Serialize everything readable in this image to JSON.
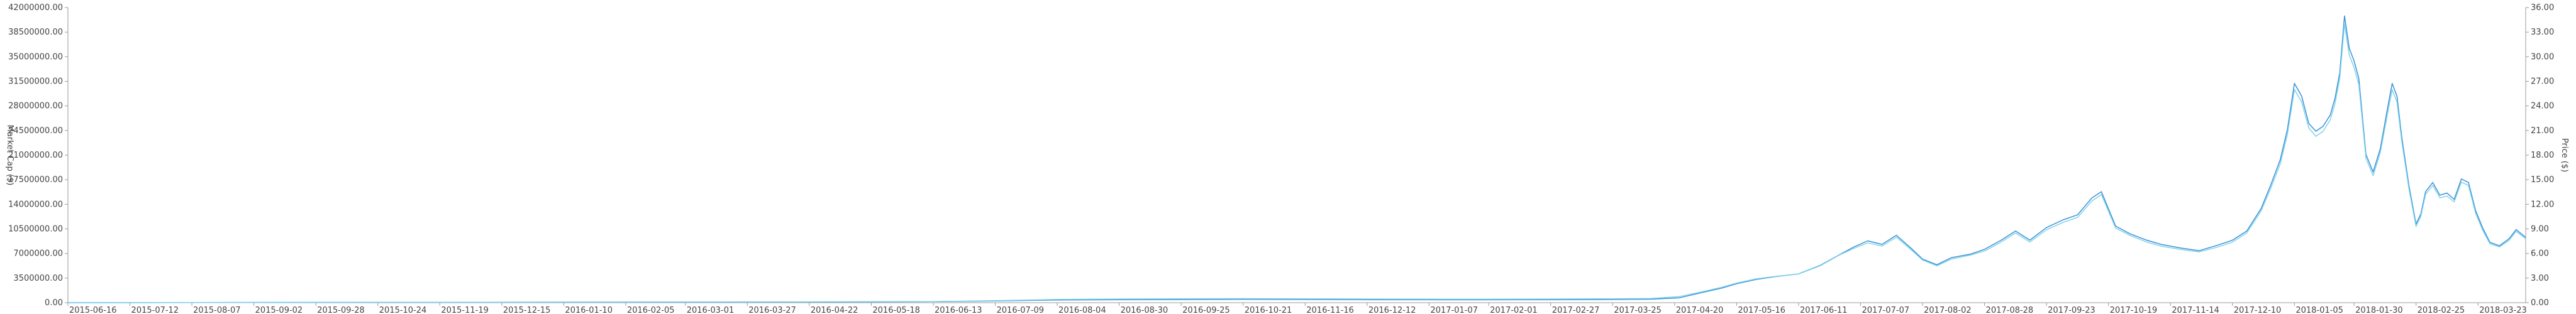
{
  "chart_data": {
    "type": "line",
    "title": "",
    "xlabel": "",
    "ylabel_left": "Market Cap ($)",
    "ylabel_right": "Price ($)",
    "left_ylim": [
      0,
      42000000
    ],
    "right_ylim": [
      0,
      36
    ],
    "left_ticks": [
      "0.00",
      "3500000.00",
      "7000000.00",
      "10500000.00",
      "14000000.00",
      "17500000.00",
      "21000000.00",
      "24500000.00",
      "28000000.00",
      "31500000.00",
      "35000000.00",
      "38500000.00",
      "42000000.00"
    ],
    "right_ticks": [
      "0.00",
      "3.00",
      "6.00",
      "9.00",
      "12.00",
      "15.00",
      "18.00",
      "21.00",
      "24.00",
      "27.00",
      "30.00",
      "33.00",
      "36.00"
    ],
    "x_ticks": [
      "2015-06-16",
      "2015-07-12",
      "2015-08-07",
      "2015-09-02",
      "2015-09-28",
      "2015-10-24",
      "2015-11-19",
      "2015-12-15",
      "2016-01-10",
      "2016-02-05",
      "2016-03-01",
      "2016-03-27",
      "2016-04-22",
      "2016-05-18",
      "2016-06-13",
      "2016-07-09",
      "2016-08-04",
      "2016-08-30",
      "2016-09-25",
      "2016-10-21",
      "2016-11-16",
      "2016-12-12",
      "2017-01-07",
      "2017-02-01",
      "2017-02-27",
      "2017-03-25",
      "2017-04-20",
      "2017-05-16",
      "2017-06-11",
      "2017-07-07",
      "2017-08-02",
      "2017-08-28",
      "2017-09-23",
      "2017-10-19",
      "2017-11-14",
      "2017-12-10",
      "2018-01-05",
      "2018-01-30",
      "2018-02-25",
      "2018-03-23"
    ],
    "x_start": "2015-06-16",
    "x_end": "2018-04-12",
    "grid": false,
    "legend": "none",
    "series": [
      {
        "axis": "left",
        "color": "#3a8fd8",
        "points": [
          [
            "2015-06-16",
            0
          ],
          [
            "2015-10-24",
            50000
          ],
          [
            "2016-03-27",
            100000
          ],
          [
            "2016-06-13",
            150000
          ],
          [
            "2016-07-09",
            250000
          ],
          [
            "2016-08-04",
            380000
          ],
          [
            "2016-08-30",
            420000
          ],
          [
            "2016-09-25",
            450000
          ],
          [
            "2016-10-21",
            480000
          ],
          [
            "2016-11-16",
            460000
          ],
          [
            "2016-12-12",
            430000
          ],
          [
            "2017-01-07",
            420000
          ],
          [
            "2017-02-01",
            410000
          ],
          [
            "2017-02-27",
            430000
          ],
          [
            "2017-03-25",
            460000
          ],
          [
            "2017-04-10",
            500000
          ],
          [
            "2017-04-22",
            700000
          ],
          [
            "2017-05-01",
            1400000
          ],
          [
            "2017-05-10",
            2100000
          ],
          [
            "2017-05-16",
            2700000
          ],
          [
            "2017-05-24",
            3300000
          ],
          [
            "2017-06-01",
            3700000
          ],
          [
            "2017-06-11",
            4100000
          ],
          [
            "2017-06-20",
            5300000
          ],
          [
            "2017-06-28",
            6800000
          ],
          [
            "2017-07-04",
            7900000
          ],
          [
            "2017-07-10",
            8800000
          ],
          [
            "2017-07-16",
            8300000
          ],
          [
            "2017-07-22",
            9600000
          ],
          [
            "2017-07-28",
            7800000
          ],
          [
            "2017-08-02",
            6200000
          ],
          [
            "2017-08-08",
            5400000
          ],
          [
            "2017-08-14",
            6400000
          ],
          [
            "2017-08-22",
            6900000
          ],
          [
            "2017-08-28",
            7600000
          ],
          [
            "2017-09-04",
            8900000
          ],
          [
            "2017-09-10",
            10200000
          ],
          [
            "2017-09-16",
            8900000
          ],
          [
            "2017-09-23",
            10700000
          ],
          [
            "2017-09-30",
            11800000
          ],
          [
            "2017-10-06",
            12500000
          ],
          [
            "2017-10-12",
            14900000
          ],
          [
            "2017-10-16",
            15800000
          ],
          [
            "2017-10-22",
            10900000
          ],
          [
            "2017-10-28",
            9800000
          ],
          [
            "2017-11-04",
            8900000
          ],
          [
            "2017-11-10",
            8300000
          ],
          [
            "2017-11-18",
            7800000
          ],
          [
            "2017-11-26",
            7400000
          ],
          [
            "2017-12-04",
            8200000
          ],
          [
            "2017-12-10",
            8900000
          ],
          [
            "2017-12-16",
            10200000
          ],
          [
            "2017-12-22",
            13400000
          ],
          [
            "2017-12-26",
            16700000
          ],
          [
            "2017-12-30",
            20300000
          ],
          [
            "2018-01-02",
            24600000
          ],
          [
            "2018-01-05",
            31200000
          ],
          [
            "2018-01-08",
            29400000
          ],
          [
            "2018-01-11",
            25500000
          ],
          [
            "2018-01-14",
            24400000
          ],
          [
            "2018-01-17",
            25100000
          ],
          [
            "2018-01-20",
            26700000
          ],
          [
            "2018-01-22",
            29100000
          ],
          [
            "2018-01-24",
            32700000
          ],
          [
            "2018-01-26",
            40800000
          ],
          [
            "2018-01-28",
            36200000
          ],
          [
            "2018-01-30",
            34400000
          ],
          [
            "2018-02-01",
            31900000
          ],
          [
            "2018-02-04",
            21100000
          ],
          [
            "2018-02-07",
            18600000
          ],
          [
            "2018-02-10",
            21900000
          ],
          [
            "2018-02-13",
            27600000
          ],
          [
            "2018-02-15",
            31200000
          ],
          [
            "2018-02-17",
            29400000
          ],
          [
            "2018-02-19",
            23600000
          ],
          [
            "2018-02-22",
            16700000
          ],
          [
            "2018-02-25",
            11200000
          ],
          [
            "2018-02-27",
            12600000
          ],
          [
            "2018-03-01",
            15800000
          ],
          [
            "2018-03-04",
            17100000
          ],
          [
            "2018-03-07",
            15300000
          ],
          [
            "2018-03-10",
            15600000
          ],
          [
            "2018-03-13",
            14700000
          ],
          [
            "2018-03-16",
            17600000
          ],
          [
            "2018-03-19",
            17100000
          ],
          [
            "2018-03-22",
            13100000
          ],
          [
            "2018-03-25",
            10600000
          ],
          [
            "2018-03-28",
            8600000
          ],
          [
            "2018-04-01",
            8100000
          ],
          [
            "2018-04-05",
            9100000
          ],
          [
            "2018-04-08",
            10400000
          ],
          [
            "2018-04-12",
            9300000
          ]
        ]
      },
      {
        "axis": "right",
        "color": "#7fd3ea",
        "points": [
          [
            "2015-06-16",
            0
          ],
          [
            "2015-10-24",
            0.05
          ],
          [
            "2016-03-27",
            0.08
          ],
          [
            "2016-06-13",
            0.13
          ],
          [
            "2016-07-09",
            0.25
          ],
          [
            "2016-08-04",
            0.4
          ],
          [
            "2016-08-30",
            0.45
          ],
          [
            "2016-09-25",
            0.48
          ],
          [
            "2016-10-21",
            0.5
          ],
          [
            "2016-11-16",
            0.48
          ],
          [
            "2016-12-12",
            0.45
          ],
          [
            "2017-01-07",
            0.44
          ],
          [
            "2017-02-01",
            0.43
          ],
          [
            "2017-02-27",
            0.45
          ],
          [
            "2017-03-25",
            0.48
          ],
          [
            "2017-04-10",
            0.52
          ],
          [
            "2017-04-22",
            0.75
          ],
          [
            "2017-05-01",
            1.3
          ],
          [
            "2017-05-10",
            1.9
          ],
          [
            "2017-05-16",
            2.4
          ],
          [
            "2017-05-24",
            2.9
          ],
          [
            "2017-06-01",
            3.2
          ],
          [
            "2017-06-11",
            3.5
          ],
          [
            "2017-06-20",
            4.5
          ],
          [
            "2017-06-28",
            5.8
          ],
          [
            "2017-07-04",
            6.6
          ],
          [
            "2017-07-10",
            7.3
          ],
          [
            "2017-07-16",
            6.9
          ],
          [
            "2017-07-22",
            8.0
          ],
          [
            "2017-07-28",
            6.5
          ],
          [
            "2017-08-02",
            5.2
          ],
          [
            "2017-08-08",
            4.5
          ],
          [
            "2017-08-14",
            5.3
          ],
          [
            "2017-08-22",
            5.8
          ],
          [
            "2017-08-28",
            6.3
          ],
          [
            "2017-09-04",
            7.4
          ],
          [
            "2017-09-10",
            8.5
          ],
          [
            "2017-09-16",
            7.4
          ],
          [
            "2017-09-23",
            8.9
          ],
          [
            "2017-09-30",
            9.8
          ],
          [
            "2017-10-06",
            10.4
          ],
          [
            "2017-10-12",
            12.4
          ],
          [
            "2017-10-16",
            13.2
          ],
          [
            "2017-10-22",
            9.1
          ],
          [
            "2017-10-28",
            8.2
          ],
          [
            "2017-11-04",
            7.4
          ],
          [
            "2017-11-10",
            6.9
          ],
          [
            "2017-11-18",
            6.5
          ],
          [
            "2017-11-26",
            6.2
          ],
          [
            "2017-12-04",
            6.8
          ],
          [
            "2017-12-10",
            7.4
          ],
          [
            "2017-12-16",
            8.5
          ],
          [
            "2017-12-22",
            11.2
          ],
          [
            "2017-12-26",
            13.9
          ],
          [
            "2017-12-30",
            16.9
          ],
          [
            "2018-01-02",
            20.5
          ],
          [
            "2018-01-05",
            26.0
          ],
          [
            "2018-01-08",
            24.5
          ],
          [
            "2018-01-11",
            21.3
          ],
          [
            "2018-01-14",
            20.3
          ],
          [
            "2018-01-17",
            20.9
          ],
          [
            "2018-01-20",
            22.3
          ],
          [
            "2018-01-22",
            24.3
          ],
          [
            "2018-01-24",
            27.3
          ],
          [
            "2018-01-26",
            34.0
          ],
          [
            "2018-01-28",
            30.2
          ],
          [
            "2018-01-30",
            28.7
          ],
          [
            "2018-02-01",
            26.6
          ],
          [
            "2018-02-04",
            17.6
          ],
          [
            "2018-02-07",
            15.5
          ],
          [
            "2018-02-10",
            18.3
          ],
          [
            "2018-02-13",
            23.0
          ],
          [
            "2018-02-15",
            26.0
          ],
          [
            "2018-02-17",
            24.5
          ],
          [
            "2018-02-19",
            19.7
          ],
          [
            "2018-02-22",
            13.9
          ],
          [
            "2018-02-25",
            9.3
          ],
          [
            "2018-02-27",
            10.5
          ],
          [
            "2018-03-01",
            13.2
          ],
          [
            "2018-03-04",
            14.3
          ],
          [
            "2018-03-07",
            12.8
          ],
          [
            "2018-03-10",
            13.0
          ],
          [
            "2018-03-13",
            12.3
          ],
          [
            "2018-03-16",
            14.7
          ],
          [
            "2018-03-19",
            14.3
          ],
          [
            "2018-03-22",
            10.9
          ],
          [
            "2018-03-25",
            8.8
          ],
          [
            "2018-03-28",
            7.2
          ],
          [
            "2018-04-01",
            6.8
          ],
          [
            "2018-04-05",
            7.6
          ],
          [
            "2018-04-08",
            8.7
          ],
          [
            "2018-04-12",
            7.8
          ]
        ]
      }
    ]
  }
}
